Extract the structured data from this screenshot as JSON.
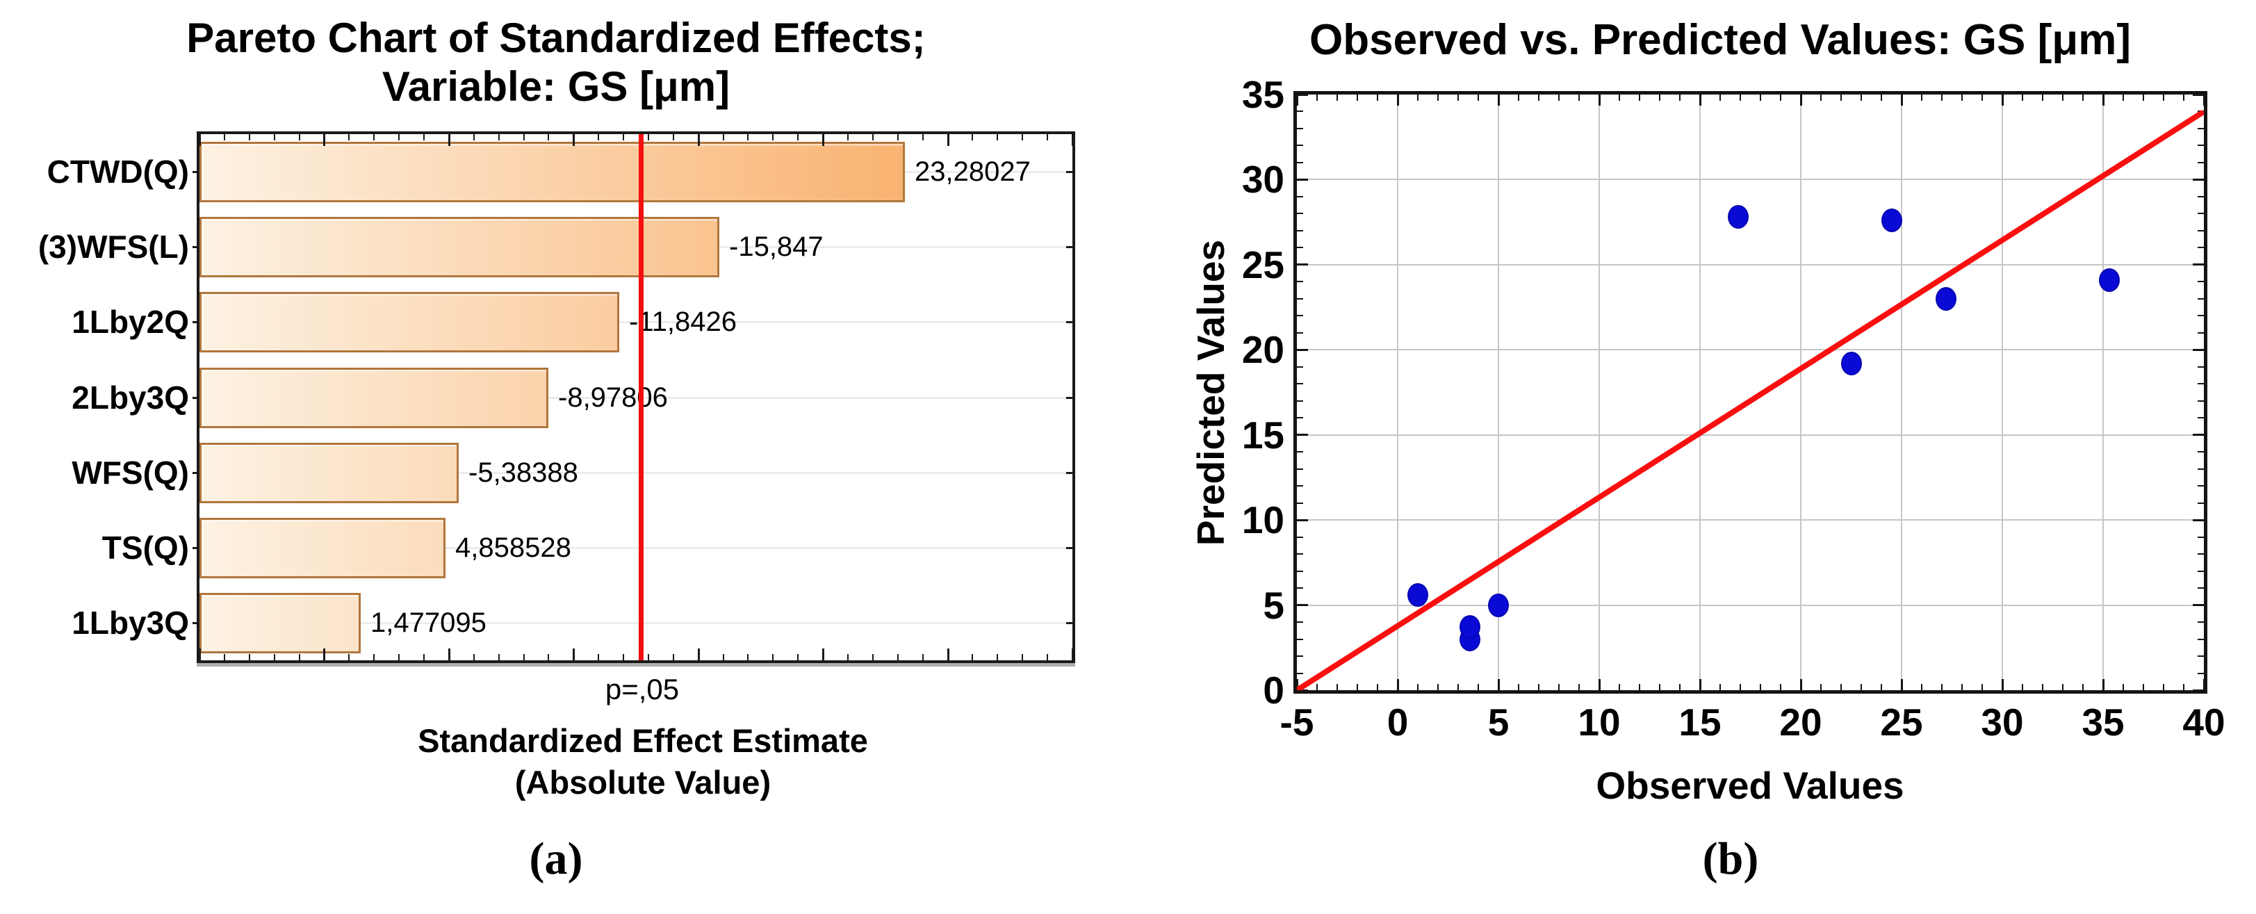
{
  "figure_panel": {
    "description": "Two-panel statistics figure for variable GS [um]",
    "background": "#ffffff"
  },
  "chart_data": [
    {
      "type": "bar",
      "orientation": "horizontal-pareto",
      "title": "Pareto Chart of Standardized Effects;",
      "subtitle": "Variable: GS [μm]",
      "caption": "(a)",
      "categories": [
        "CTWD(Q)",
        "(3)WFS(L)",
        "1Lby2Q",
        "2Lby3Q",
        "WFS(Q)",
        "TS(Q)",
        "1Lby3Q"
      ],
      "values": [
        23.28027,
        -15.847,
        -11.8426,
        -8.97806,
        -5.38388,
        4.858528,
        1.477095
      ],
      "value_labels": [
        "23,28027",
        "-15,847",
        "-11,8426",
        "-8,97806",
        "-5,38388",
        "4,858528",
        "1,477095"
      ],
      "bars_plotted_as": "absolute value, bars start at axis minimum",
      "xlabel_line1": "Standardized Effect Estimate",
      "xlabel_line2": "(Absolute Value)",
      "significance_line": {
        "label": "p=,05",
        "value": 12.7
      },
      "xlim": [
        -5,
        30
      ],
      "minor_tick_step": 1,
      "major_tick_step": 5,
      "grid": "light horizontal gridline at each category row",
      "colors": {
        "bar_gradient_start": "#fdf2e3",
        "bar_gradient_end": "#f8a355",
        "bar_border": "#b0763c",
        "significance_line": "#f60f0f",
        "gridline": "#ececec",
        "frame": "#1a1a1a"
      }
    },
    {
      "type": "scatter",
      "title": "Observed vs. Predicted Values: GS [μm]",
      "caption": "(b)",
      "xlabel": "Observed Values",
      "ylabel": "Predicted Values",
      "xlim": [
        -5,
        40
      ],
      "ylim": [
        0,
        35
      ],
      "xticks": [
        -5,
        0,
        5,
        10,
        15,
        20,
        25,
        30,
        35,
        40
      ],
      "yticks": [
        0,
        5,
        10,
        15,
        20,
        25,
        30,
        35
      ],
      "minor_tick_step": 1,
      "grid": true,
      "legend": false,
      "points": [
        [
          1.0,
          5.6
        ],
        [
          3.6,
          3.0
        ],
        [
          3.6,
          3.7
        ],
        [
          5.0,
          5.0
        ],
        [
          16.9,
          27.8
        ],
        [
          22.5,
          19.2
        ],
        [
          24.5,
          27.6
        ],
        [
          27.2,
          23.0
        ],
        [
          35.3,
          24.1
        ]
      ],
      "fit_line": {
        "x1": -5,
        "y1": 0,
        "x2": 40,
        "y2": 34
      },
      "colors": {
        "point": "#0a0ad6",
        "point_border": "#0505b2",
        "line": "#f90f0f",
        "gridline": "#c6c6c6",
        "frame": "#141414"
      }
    }
  ]
}
